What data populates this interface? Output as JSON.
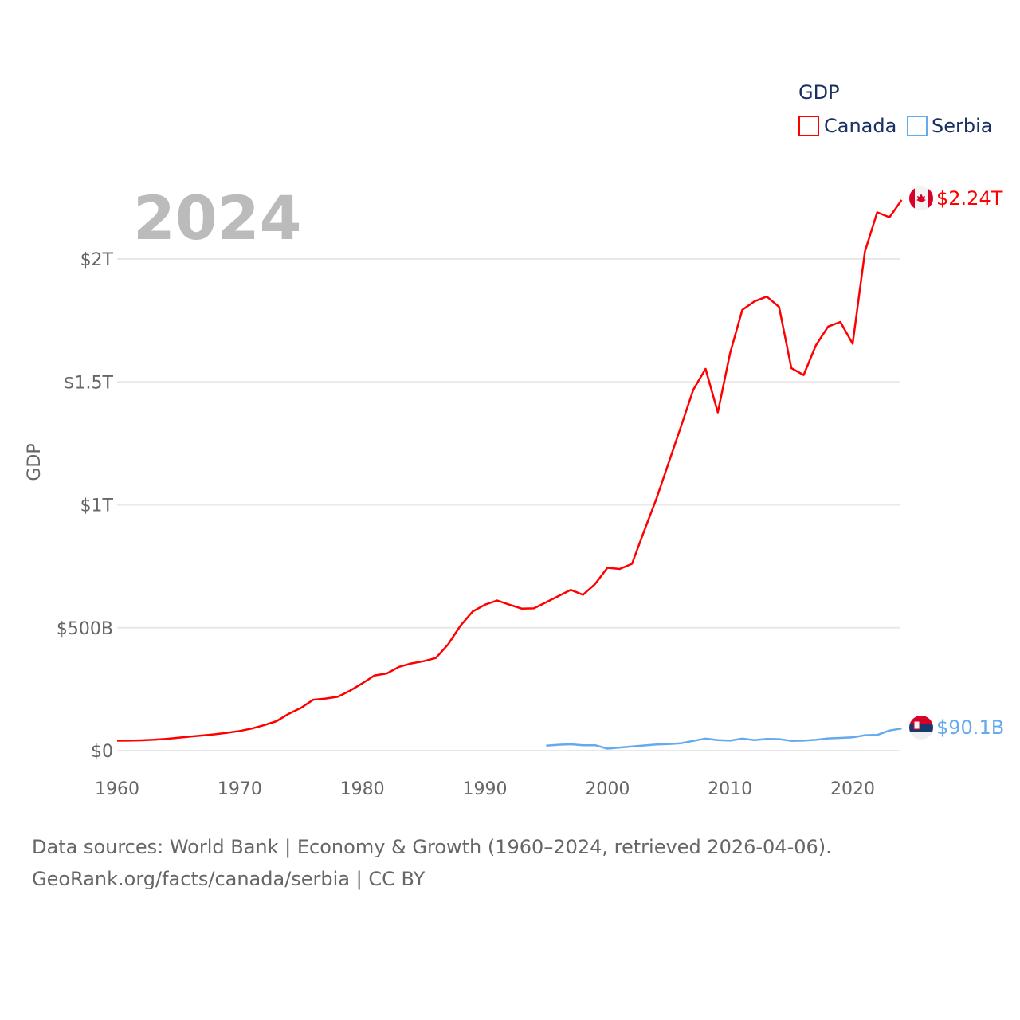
{
  "chart_data": {
    "type": "line",
    "title": "",
    "ylabel": "GDP",
    "xlabel": "",
    "current_year_label": "2024",
    "legend": {
      "title": "GDP",
      "placement": "top-right"
    },
    "xlim": [
      1960,
      2024
    ],
    "ylim": [
      0,
      2300
    ],
    "y_unit": "billion USD",
    "x_ticks": [
      1960,
      1970,
      1980,
      1990,
      2000,
      2010,
      2020
    ],
    "y_ticks": [
      {
        "value": 0,
        "label": "$0"
      },
      {
        "value": 500,
        "label": "$500B"
      },
      {
        "value": 1000,
        "label": "$1T"
      },
      {
        "value": 1500,
        "label": "$1.5T"
      },
      {
        "value": 2000,
        "label": "$2T"
      }
    ],
    "grid": true,
    "series": [
      {
        "name": "Canada",
        "color": "#ff0000",
        "end_label": "$2.24T",
        "x_start": 1960,
        "values": [
          40.5,
          40.9,
          42.2,
          44.4,
          48.1,
          52.5,
          57.8,
          62.0,
          66.9,
          72.9,
          80.0,
          90.0,
          104,
          120,
          150,
          174,
          207,
          212,
          219,
          244,
          274,
          306,
          314,
          341,
          355,
          364,
          377,
          432,
          508,
          566,
          594,
          611,
          594,
          578,
          579,
          604,
          629,
          654,
          634,
          678,
          744,
          739,
          760,
          895,
          1026,
          1173,
          1319,
          1468,
          1553,
          1376,
          1617,
          1793,
          1828,
          1847,
          1805,
          1556,
          1528,
          1649,
          1725,
          1744,
          1655,
          2030,
          2190,
          2170,
          2240
        ]
      },
      {
        "name": "Serbia",
        "color": "#66aaee",
        "end_label": "$90.1B",
        "x_start": 1995,
        "values": [
          20,
          24,
          26,
          22,
          22,
          8,
          12.8,
          17,
          21,
          25,
          27,
          30,
          40,
          49,
          43,
          41,
          49,
          43,
          48,
          47,
          40,
          41,
          44,
          50,
          52,
          54,
          63,
          64,
          82,
          90.1
        ]
      }
    ]
  },
  "footer": {
    "line1": "Data sources: World Bank | Economy & Growth (1960–2024, retrieved 2026-04-06).",
    "line2": "GeoRank.org/facts/canada/serbia | CC BY"
  }
}
